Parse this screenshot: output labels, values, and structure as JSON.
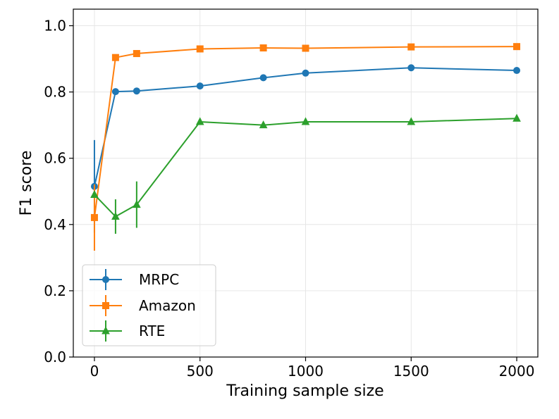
{
  "chart_data": {
    "type": "line",
    "title": "",
    "xlabel": "Training sample size",
    "ylabel": "F1 score",
    "xlim": [
      -100,
      2100
    ],
    "ylim": [
      0.0,
      1.05
    ],
    "xticks": [
      0,
      500,
      1000,
      1500,
      2000
    ],
    "yticks": [
      0.0,
      0.2,
      0.4,
      0.6,
      0.8,
      1.0
    ],
    "xtick_labels": [
      "0",
      "500",
      "1000",
      "1500",
      "2000"
    ],
    "ytick_labels": [
      "0.0",
      "0.2",
      "0.4",
      "0.6",
      "0.8",
      "1.0"
    ],
    "grid": true,
    "legend_position": "lower-left",
    "series": [
      {
        "name": "MRPC",
        "color": "#1f77b4",
        "marker": "circle",
        "x": [
          0,
          100,
          200,
          500,
          800,
          1000,
          1500,
          2000
        ],
        "y": [
          0.515,
          0.801,
          0.803,
          0.818,
          0.843,
          0.857,
          0.873,
          0.865
        ],
        "err": [
          0.14,
          0.0,
          0.0,
          0.0,
          0.0,
          0.0,
          0.0,
          0.0
        ]
      },
      {
        "name": "Amazon",
        "color": "#ff7f0e",
        "marker": "square",
        "x": [
          0,
          100,
          200,
          500,
          800,
          1000,
          1500,
          2000
        ],
        "y": [
          0.421,
          0.904,
          0.916,
          0.93,
          0.933,
          0.932,
          0.936,
          0.937
        ],
        "err": [
          0.1,
          0.0,
          0.0,
          0.0,
          0.0,
          0.0,
          0.0,
          0.0
        ]
      },
      {
        "name": "RTE",
        "color": "#2ca02c",
        "marker": "triangle",
        "x": [
          0,
          100,
          200,
          500,
          800,
          1000,
          1500,
          2000
        ],
        "y": [
          0.49,
          0.424,
          0.46,
          0.71,
          0.7,
          0.71,
          0.71,
          0.72
        ],
        "err": [
          0.0,
          0.052,
          0.07,
          0.0,
          0.0,
          0.0,
          0.0,
          0.0
        ]
      }
    ]
  }
}
